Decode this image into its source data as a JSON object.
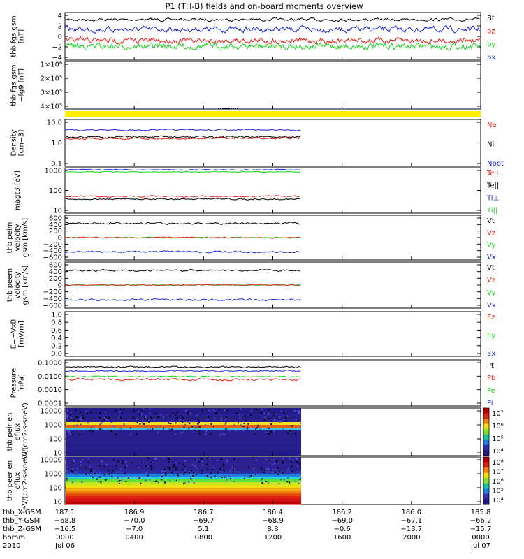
{
  "title": "P1 (TH-B) fields and on-board moments overview",
  "colors": {
    "black": "#000000",
    "red": "#e8201a",
    "green": "#19d61b",
    "blue": "#1a28d8",
    "yellow": "#ffee00"
  },
  "chart_data": [
    {
      "type": "line",
      "ylabel": "thb fgs gsm [nT]",
      "ylim": [
        -4,
        4
      ],
      "yticks": [
        "4",
        "2",
        "0",
        "−2",
        "−4"
      ],
      "series": [
        {
          "name": "Bt",
          "color": "#000000",
          "approx_level": 3.1
        },
        {
          "name": "bz",
          "color": "#e8201a",
          "approx_level": 0.0
        },
        {
          "name": "by",
          "color": "#19d61b",
          "approx_level": -0.8
        },
        {
          "name": "bx",
          "color": "#1a28d8",
          "approx_level": 1.8
        }
      ],
      "legend_placement": "right"
    },
    {
      "type": "line",
      "ylabel": "thb fgs gsm −fg9 [nT]",
      "yticks": [
        "1×10⁶",
        "2×10⁵",
        "3×10⁵",
        "4×10⁵"
      ],
      "series": []
    },
    {
      "type": "line",
      "ylabel": "Density [cm−3]",
      "scale": "log",
      "ylim": [
        0.1,
        10
      ],
      "yticks": [
        "10.0",
        "1.0",
        "0.1"
      ],
      "series": [
        {
          "name": "Ne",
          "color": "#e8201a",
          "approx_level": 1.7
        },
        {
          "name": "Ni",
          "color": "#000000",
          "approx_level": 2.0
        },
        {
          "name": "Npot",
          "color": "#1a28d8",
          "approx_level": 3.3
        }
      ]
    },
    {
      "type": "line",
      "ylabel": "magt3 [eV]",
      "scale": "log",
      "ylim": [
        3,
        1000
      ],
      "yticks": [
        "1000",
        "100",
        "10"
      ],
      "series": [
        {
          "name": "Te⊥",
          "color": "#e8201a",
          "approx_level": 17
        },
        {
          "name": "Te||",
          "color": "#000000",
          "approx_level": 13
        },
        {
          "name": "Ti⊥",
          "color": "#1a28d8",
          "approx_level": 900
        },
        {
          "name": "Ti||",
          "color": "#19d61b",
          "approx_level": 800
        }
      ]
    },
    {
      "type": "line",
      "ylabel": "thb peim velocity gsm [km/s]",
      "ylim": [
        -600,
        600
      ],
      "yticks": [
        "600",
        "400",
        "200",
        "0",
        "−200",
        "−400",
        "−600"
      ],
      "series": [
        {
          "name": "Vt",
          "color": "#000000",
          "approx_level": 420
        },
        {
          "name": "Vz",
          "color": "#e8201a",
          "approx_level": 10
        },
        {
          "name": "Vy",
          "color": "#19d61b",
          "approx_level": 5
        },
        {
          "name": "Vx",
          "color": "#1a28d8",
          "approx_level": -410
        }
      ]
    },
    {
      "type": "line",
      "ylabel": "thb peem velocity gsm [km/s]",
      "ylim": [
        -600,
        600
      ],
      "yticks": [
        "600",
        "400",
        "200",
        "0",
        "−200",
        "−400",
        "−600"
      ],
      "series": [
        {
          "name": "Vt",
          "color": "#000000",
          "approx_level": 430
        },
        {
          "name": "Vz",
          "color": "#e8201a",
          "approx_level": 10
        },
        {
          "name": "Vy",
          "color": "#19d61b",
          "approx_level": 0
        },
        {
          "name": "Vx",
          "color": "#1a28d8",
          "approx_level": -420
        }
      ]
    },
    {
      "type": "line",
      "ylabel": "E=−VxB [mV/m]",
      "ylim": [
        0,
        1
      ],
      "yticks": [
        "1.0",
        "0.8",
        "0.6",
        "0.4",
        "0.2",
        "0.0"
      ],
      "series": [
        {
          "name": "Ez",
          "color": "#e8201a"
        },
        {
          "name": "Ey",
          "color": "#19d61b"
        },
        {
          "name": "Ex",
          "color": "#1a28d8"
        }
      ]
    },
    {
      "type": "line",
      "ylabel": "Pressure [nPa]",
      "scale": "log",
      "ylim": [
        0.0001,
        0.1
      ],
      "yticks": [
        "0.1000",
        "0.0100",
        "0.0010",
        "0.0001"
      ],
      "series": [
        {
          "name": "Pt",
          "color": "#000000",
          "approx_level": 0.015
        },
        {
          "name": "Pb",
          "color": "#e8201a",
          "approx_level": 0.002
        },
        {
          "name": "Pe",
          "color": "#19d61b",
          "approx_level": 0.0035
        },
        {
          "name": "Pi",
          "color": "#1a28d8",
          "approx_level": 0.01
        }
      ]
    },
    {
      "type": "heatmap",
      "ylabel": "thb peir en eflux eV/(cm2-s-sr-eV)",
      "scale": "log",
      "yticks": [
        "10000",
        "1000",
        "100",
        "10"
      ],
      "colorbar_ticks": [
        "10⁷",
        "10⁶",
        "10⁵",
        "10⁴"
      ]
    },
    {
      "type": "heatmap",
      "ylabel": "thb peer en eflux eV/(cm2-s-sr-eV)",
      "scale": "log",
      "yticks": [
        "10000",
        "1000",
        "100",
        "10"
      ],
      "colorbar_ticks": [
        "10⁸",
        "10⁷",
        "10⁶",
        "10⁵",
        "10⁴"
      ]
    }
  ],
  "x_axis": {
    "rows": [
      {
        "label": "thb_X-GSM",
        "values": [
          "187.1",
          "186.9",
          "186.7",
          "186.4",
          "186.2",
          "186.0",
          "185.8"
        ]
      },
      {
        "label": "thb_Y-GSM",
        "values": [
          "−68.8",
          "−70.0",
          "−69.7",
          "−68.9",
          "−69.0",
          "−67.1",
          "−66.2"
        ]
      },
      {
        "label": "thb_Z-GSM",
        "values": [
          "−16.5",
          "−7.0",
          "5.1",
          "8.8",
          "−0.6",
          "−13.7",
          "−15.7"
        ]
      },
      {
        "label": "hhmm",
        "values": [
          "0000",
          "0400",
          "0800",
          "1200",
          "1600",
          "2000",
          "0000"
        ]
      },
      {
        "label": "2010",
        "values": [
          "Jul 06",
          "",
          "",
          "",
          "",
          "",
          "Jul 07"
        ]
      }
    ]
  }
}
